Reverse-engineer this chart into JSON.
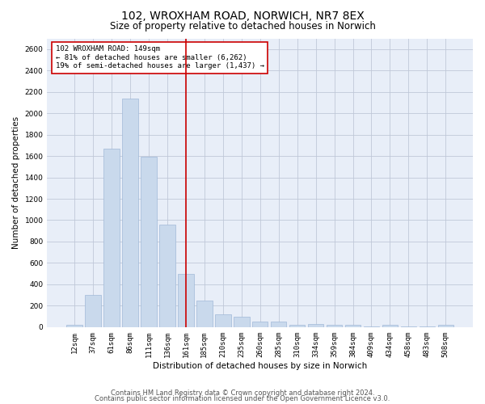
{
  "title_line1": "102, WROXHAM ROAD, NORWICH, NR7 8EX",
  "title_line2": "Size of property relative to detached houses in Norwich",
  "xlabel": "Distribution of detached houses by size in Norwich",
  "ylabel": "Number of detached properties",
  "categories": [
    "12sqm",
    "37sqm",
    "61sqm",
    "86sqm",
    "111sqm",
    "136sqm",
    "161sqm",
    "185sqm",
    "210sqm",
    "235sqm",
    "260sqm",
    "285sqm",
    "310sqm",
    "334sqm",
    "359sqm",
    "384sqm",
    "409sqm",
    "434sqm",
    "458sqm",
    "483sqm",
    "508sqm"
  ],
  "values": [
    20,
    300,
    1670,
    2140,
    1590,
    960,
    500,
    245,
    120,
    100,
    50,
    50,
    20,
    30,
    20,
    20,
    5,
    20,
    5,
    5,
    20
  ],
  "bar_color": "#c9d9ec",
  "bar_edge_color": "#a0b8d8",
  "vline_x": 6,
  "vline_color": "#cc0000",
  "annotation_text": "102 WROXHAM ROAD: 149sqm\n← 81% of detached houses are smaller (6,262)\n19% of semi-detached houses are larger (1,437) →",
  "annotation_box_color": "#ffffff",
  "annotation_box_edge_color": "#cc0000",
  "ylim": [
    0,
    2700
  ],
  "yticks": [
    0,
    200,
    400,
    600,
    800,
    1000,
    1200,
    1400,
    1600,
    1800,
    2000,
    2200,
    2400,
    2600
  ],
  "grid_color": "#c0c8d8",
  "background_color": "#e8eef8",
  "footer_line1": "Contains HM Land Registry data © Crown copyright and database right 2024.",
  "footer_line2": "Contains public sector information licensed under the Open Government Licence v3.0.",
  "title_fontsize": 10,
  "subtitle_fontsize": 8.5,
  "axis_label_fontsize": 7.5,
  "tick_fontsize": 6.5,
  "annotation_fontsize": 6.5,
  "footer_fontsize": 6
}
